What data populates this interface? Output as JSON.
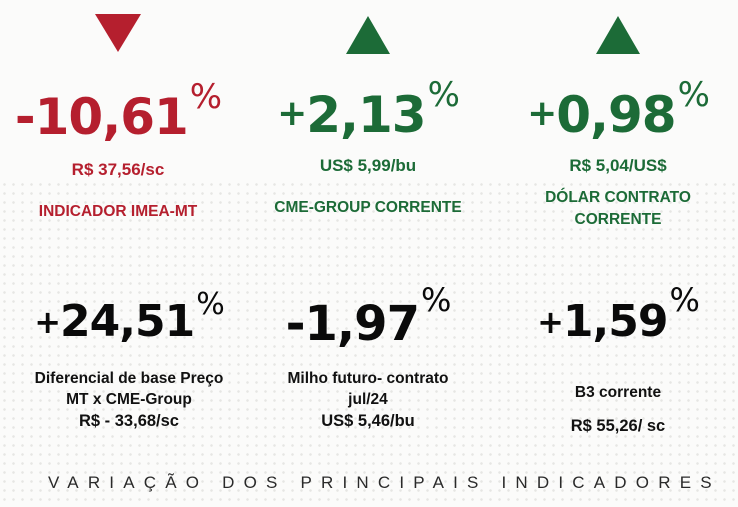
{
  "top": [
    {
      "arrow": "down-triangle",
      "color": "#b51f2e",
      "value": "-10,61",
      "percent": "%",
      "price": "R$ 37,56/sc",
      "caption": "INDICADOR IMEA-MT"
    },
    {
      "arrow": "up-triangle",
      "color": "#1c6b37",
      "sign": "+",
      "value": "2,13",
      "percent": "%",
      "price": "US$ 5,99/bu",
      "caption": "CME-GROUP CORRENTE"
    },
    {
      "arrow": "up-triangle",
      "color": "#1c6b37",
      "sign": "+",
      "value": "0,98",
      "percent": "%",
      "price": "R$ 5,04/US$",
      "caption_line1": "DÓLAR CONTRATO",
      "caption_line2": "CORRENTE"
    }
  ],
  "bottom": [
    {
      "sign": "+",
      "value": "24,51",
      "percent": "%",
      "desc_line1": "Diferencial de base Preço",
      "desc_line2": "MT x CME-Group",
      "desc_line3": "R$ - 33,68/sc"
    },
    {
      "value": "-1,97",
      "percent": "%",
      "desc_line1": "Milho futuro- contrato",
      "desc_line2": "jul/24",
      "desc_line3": "US$ 5,46/bu"
    },
    {
      "sign": "+",
      "value": "1,59",
      "percent": "%",
      "desc_line1": "B3 corrente",
      "desc_line2": "R$ 55,26/ sc"
    }
  ],
  "footer": "VARIAÇÃO DOS PRINCIPAIS INDICADORES"
}
